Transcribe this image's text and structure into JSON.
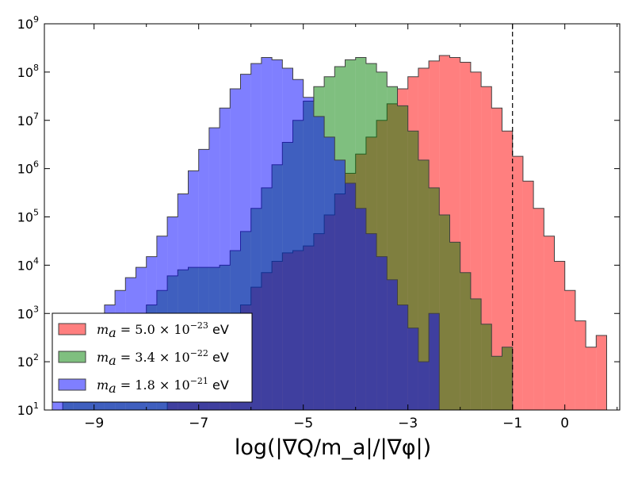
{
  "chart_data": {
    "type": "histogram",
    "title": "",
    "xlabel": "log(|∇Q/m_a|/|∇φ|)",
    "ylabel": "",
    "xlim": [
      -9.95,
      1.05
    ],
    "ylim": [
      10,
      1000000000
    ],
    "yscale": "log",
    "grid": false,
    "legend_position": "lower-left",
    "reference_line": {
      "x": -1,
      "style": "dashed"
    },
    "x_ticks": [
      -9,
      -7,
      -5,
      -3,
      -1,
      0
    ],
    "x_tick_labels": [
      "−9",
      "−7",
      "−5",
      "−3",
      "−1",
      "0"
    ],
    "y_ticks": [
      {
        "value": 10,
        "base": "10",
        "exp": "1"
      },
      {
        "value": 100,
        "base": "10",
        "exp": "2"
      },
      {
        "value": 1000,
        "base": "10",
        "exp": "3"
      },
      {
        "value": 10000,
        "base": "10",
        "exp": "4"
      },
      {
        "value": 100000,
        "base": "10",
        "exp": "5"
      },
      {
        "value": 1000000,
        "base": "10",
        "exp": "6"
      },
      {
        "value": 10000000,
        "base": "10",
        "exp": "7"
      },
      {
        "value": 100000000,
        "base": "10",
        "exp": "8"
      },
      {
        "value": 1000000000,
        "base": "10",
        "exp": "9"
      }
    ],
    "series": [
      {
        "name": "m_a = 5.0 × 10^-23 eV",
        "legend": {
          "math": "m",
          "sub": "a",
          "eq": " = 5.0 × 10",
          "exp": "−23",
          "unit": " eV"
        },
        "color": "#ff0000",
        "opacity": 0.5,
        "bins": [
          [
            -7.6,
            -7.4,
            15
          ],
          [
            -7.4,
            -7.2,
            20
          ],
          [
            -7.2,
            -7.0,
            30
          ],
          [
            -7.0,
            -6.8,
            60
          ],
          [
            -6.8,
            -6.6,
            150
          ],
          [
            -6.6,
            -6.4,
            300
          ],
          [
            -6.4,
            -6.2,
            700
          ],
          [
            -6.2,
            -6.0,
            1500
          ],
          [
            -6.0,
            -5.8,
            3500
          ],
          [
            -5.8,
            -5.6,
            7000
          ],
          [
            -5.6,
            -5.4,
            12000
          ],
          [
            -5.4,
            -5.2,
            18000
          ],
          [
            -5.2,
            -5.0,
            20000
          ],
          [
            -5.0,
            -4.8,
            25000
          ],
          [
            -4.8,
            -4.6,
            45000
          ],
          [
            -4.6,
            -4.4,
            110000
          ],
          [
            -4.4,
            -4.2,
            300000
          ],
          [
            -4.2,
            -4.0,
            800000
          ],
          [
            -4.0,
            -3.8,
            2000000
          ],
          [
            -3.8,
            -3.6,
            4500000
          ],
          [
            -3.6,
            -3.4,
            10000000
          ],
          [
            -3.4,
            -3.2,
            22000000
          ],
          [
            -3.2,
            -3.0,
            45000000
          ],
          [
            -3.0,
            -2.8,
            80000000
          ],
          [
            -2.8,
            -2.6,
            120000000
          ],
          [
            -2.6,
            -2.4,
            170000000
          ],
          [
            -2.4,
            -2.2,
            220000000
          ],
          [
            -2.2,
            -2.0,
            200000000
          ],
          [
            -2.0,
            -1.8,
            160000000
          ],
          [
            -1.8,
            -1.6,
            100000000
          ],
          [
            -1.6,
            -1.4,
            50000000
          ],
          [
            -1.4,
            -1.2,
            18000000
          ],
          [
            -1.2,
            -1.0,
            6000000
          ],
          [
            -1.0,
            -0.8,
            1800000
          ],
          [
            -0.8,
            -0.6,
            550000
          ],
          [
            -0.6,
            -0.4,
            150000
          ],
          [
            -0.4,
            -0.2,
            40000
          ],
          [
            -0.2,
            0.0,
            12000
          ],
          [
            0.0,
            0.2,
            3000
          ],
          [
            0.2,
            0.4,
            700
          ],
          [
            0.4,
            0.6,
            200
          ],
          [
            0.6,
            0.8,
            350
          ]
        ]
      },
      {
        "name": "m_a = 3.4 × 10^-22 eV",
        "legend": {
          "math": "m",
          "sub": "a",
          "eq": " = 3.4 × 10",
          "exp": "−22",
          "unit": " eV"
        },
        "color": "#008000",
        "opacity": 0.5,
        "bins": [
          [
            -9.6,
            -9.4,
            15
          ],
          [
            -9.4,
            -9.2,
            20
          ],
          [
            -9.2,
            -9.0,
            30
          ],
          [
            -9.0,
            -8.8,
            60
          ],
          [
            -8.8,
            -8.6,
            130
          ],
          [
            -8.6,
            -8.4,
            270
          ],
          [
            -8.4,
            -8.2,
            500
          ],
          [
            -8.2,
            -8.0,
            900
          ],
          [
            -8.0,
            -7.8,
            1500
          ],
          [
            -7.8,
            -7.6,
            3000
          ],
          [
            -7.6,
            -7.4,
            6000
          ],
          [
            -7.4,
            -7.2,
            8000
          ],
          [
            -7.2,
            -7.0,
            9000
          ],
          [
            -7.0,
            -6.8,
            9000
          ],
          [
            -6.8,
            -6.6,
            9000
          ],
          [
            -6.6,
            -6.4,
            10000
          ],
          [
            -6.4,
            -6.2,
            20000
          ],
          [
            -6.2,
            -6.0,
            50000
          ],
          [
            -6.0,
            -5.8,
            150000
          ],
          [
            -5.8,
            -5.6,
            400000
          ],
          [
            -5.6,
            -5.4,
            1200000
          ],
          [
            -5.4,
            -5.2,
            3500000
          ],
          [
            -5.2,
            -5.0,
            10000000
          ],
          [
            -5.0,
            -4.8,
            25000000
          ],
          [
            -4.8,
            -4.6,
            50000000
          ],
          [
            -4.6,
            -4.4,
            80000000
          ],
          [
            -4.4,
            -4.2,
            130000000
          ],
          [
            -4.2,
            -4.0,
            180000000
          ],
          [
            -4.0,
            -3.8,
            200000000
          ],
          [
            -3.8,
            -3.6,
            150000000
          ],
          [
            -3.6,
            -3.4,
            100000000
          ],
          [
            -3.4,
            -3.2,
            50000000
          ],
          [
            -3.2,
            -3.0,
            20000000
          ],
          [
            -3.0,
            -2.8,
            6000000
          ],
          [
            -2.8,
            -2.6,
            1500000
          ],
          [
            -2.6,
            -2.4,
            400000
          ],
          [
            -2.4,
            -2.2,
            110000
          ],
          [
            -2.2,
            -2.0,
            30000
          ],
          [
            -2.0,
            -1.8,
            7000
          ],
          [
            -1.8,
            -1.6,
            2000
          ],
          [
            -1.6,
            -1.4,
            600
          ],
          [
            -1.4,
            -1.2,
            130
          ],
          [
            -1.2,
            -1.0,
            200
          ]
        ]
      },
      {
        "name": "m_a = 1.8 × 10^-21 eV",
        "legend": {
          "math": "m",
          "sub": "a",
          "eq": " = 1.8 × 10",
          "exp": "−21",
          "unit": " eV"
        },
        "color": "#0000ff",
        "opacity": 0.5,
        "bins": [
          [
            -9.8,
            -9.6,
            15
          ],
          [
            -9.6,
            -9.4,
            40
          ],
          [
            -9.4,
            -9.2,
            130
          ],
          [
            -9.2,
            -9.0,
            350
          ],
          [
            -9.0,
            -8.8,
            800
          ],
          [
            -8.8,
            -8.6,
            1500
          ],
          [
            -8.6,
            -8.4,
            3000
          ],
          [
            -8.4,
            -8.2,
            5500
          ],
          [
            -8.2,
            -8.0,
            9000
          ],
          [
            -8.0,
            -7.8,
            15000
          ],
          [
            -7.8,
            -7.6,
            40000
          ],
          [
            -7.6,
            -7.4,
            100000
          ],
          [
            -7.4,
            -7.2,
            300000
          ],
          [
            -7.2,
            -7.0,
            900000
          ],
          [
            -7.0,
            -6.8,
            2500000
          ],
          [
            -6.8,
            -6.6,
            7000000
          ],
          [
            -6.6,
            -6.4,
            18000000
          ],
          [
            -6.4,
            -6.2,
            45000000
          ],
          [
            -6.2,
            -6.0,
            90000000
          ],
          [
            -6.0,
            -5.8,
            150000000
          ],
          [
            -5.8,
            -5.6,
            200000000
          ],
          [
            -5.6,
            -5.4,
            180000000
          ],
          [
            -5.4,
            -5.2,
            120000000
          ],
          [
            -5.2,
            -5.0,
            70000000
          ],
          [
            -5.0,
            -4.8,
            30000000
          ],
          [
            -4.8,
            -4.6,
            12000000
          ],
          [
            -4.6,
            -4.4,
            4500000
          ],
          [
            -4.4,
            -4.2,
            1500000
          ],
          [
            -4.2,
            -4.0,
            500000
          ],
          [
            -4.0,
            -3.8,
            150000
          ],
          [
            -3.8,
            -3.6,
            45000
          ],
          [
            -3.6,
            -3.4,
            15000
          ],
          [
            -3.4,
            -3.2,
            5000
          ],
          [
            -3.2,
            -3.0,
            1500
          ],
          [
            -3.0,
            -2.8,
            500
          ],
          [
            -2.8,
            -2.6,
            100
          ],
          [
            -2.6,
            -2.4,
            1000
          ]
        ]
      }
    ]
  }
}
